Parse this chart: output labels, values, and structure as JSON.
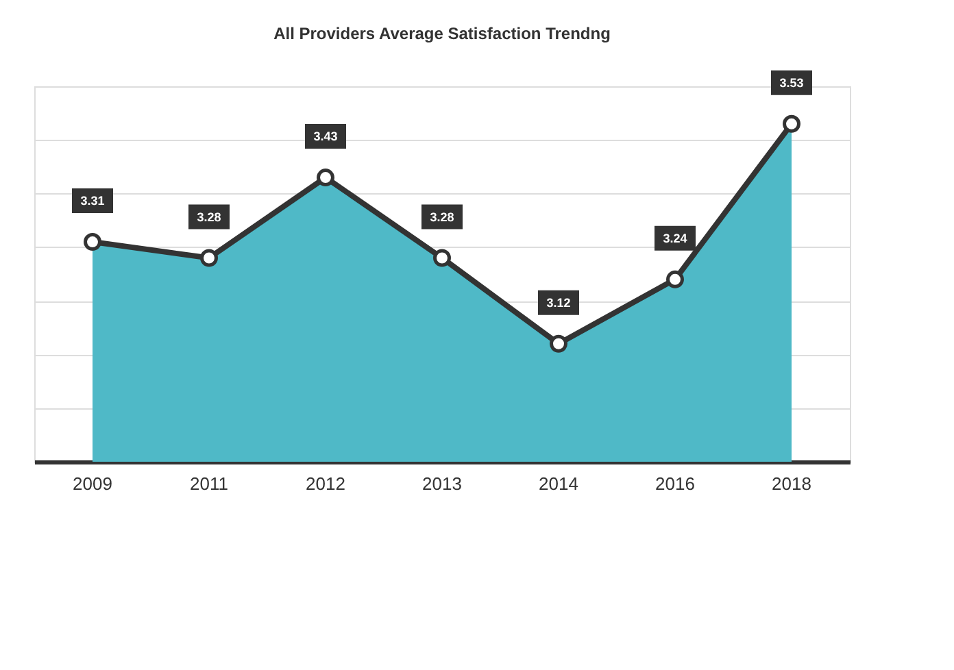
{
  "chart_data": {
    "type": "area",
    "title": "All Providers Average Satisfaction Trendng",
    "categories": [
      "2009",
      "2011",
      "2012",
      "2013",
      "2014",
      "2016",
      "2018"
    ],
    "series": [
      {
        "color": "#4fb9c7",
        "values": [
          3.31,
          3.28,
          3.43,
          3.28,
          3.12,
          3.24,
          3.53
        ]
      }
    ],
    "ylim": [
      2.9,
      3.6
    ],
    "yticks": [
      {
        "value": 3.0,
        "label": null
      },
      {
        "value": 3.1,
        "label": null
      },
      {
        "value": 3.2,
        "label": null
      },
      {
        "value": 3.3,
        "label": null
      },
      {
        "value": 3.4,
        "label": null
      },
      {
        "value": 3.5,
        "label": null
      },
      {
        "value": 3.6,
        "label": null
      }
    ],
    "grid": "y",
    "tick_labels": "x",
    "data_labels": true,
    "marker": "circle",
    "line_style": "solid"
  }
}
